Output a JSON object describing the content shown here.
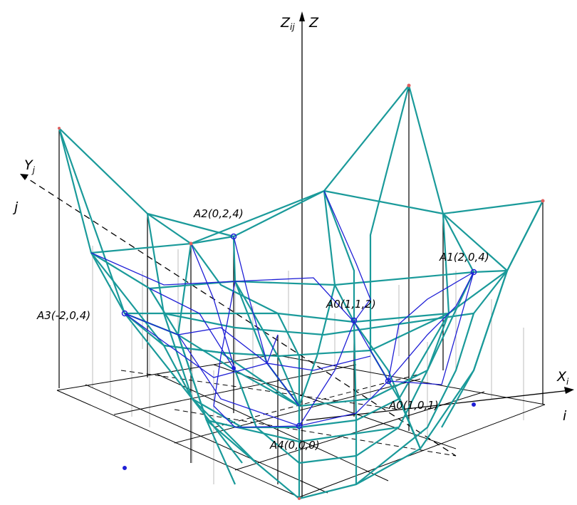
{
  "axes": {
    "z_primary": "Z",
    "z_secondary_base": "Z",
    "z_secondary_sub": "ij",
    "y_base": "Y",
    "y_sub": "j",
    "y_index": "j",
    "x_base": "X",
    "x_sub": "i",
    "x_index": "i"
  },
  "points": [
    {
      "id": "A2",
      "label": "A2(0,2,4)"
    },
    {
      "id": "A1",
      "label": "A1(2,0,4)"
    },
    {
      "id": "A0a",
      "label": "A0(1,1,2)"
    },
    {
      "id": "A3",
      "label": "A3(-2,0,4)"
    },
    {
      "id": "A0b",
      "label": "A0(1,0,1)"
    },
    {
      "id": "A4",
      "label": "A4(0,0,0)"
    }
  ],
  "colors": {
    "teal": "#1a9a9a",
    "blue": "#1f1fd6",
    "black": "#000000",
    "grid": "#b8b8b8",
    "marker_red": "#e06060"
  }
}
